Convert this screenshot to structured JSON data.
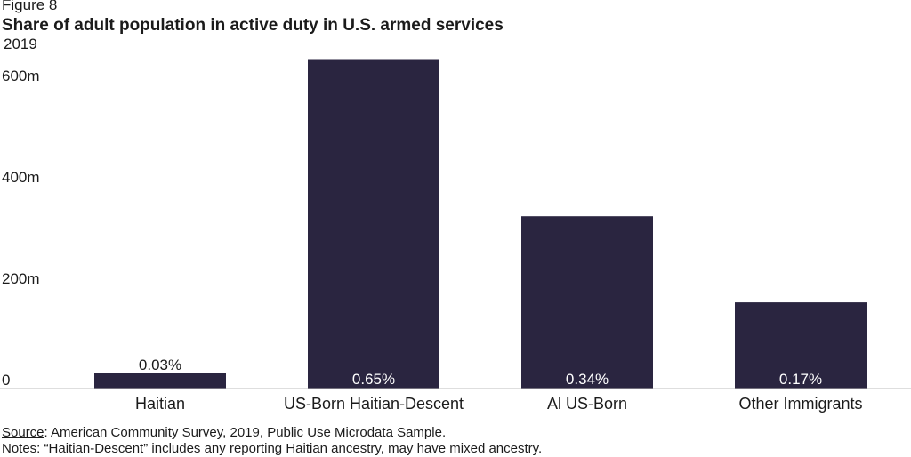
{
  "header": {
    "figure_label": "Figure 8",
    "title": "Share of adult population in active duty in U.S. armed services",
    "subtitle": "2019"
  },
  "chart_data": {
    "type": "bar",
    "categories": [
      "Haitian",
      "US-Born Haitian-Descent",
      "Al US-Born",
      "Other Immigrants"
    ],
    "values": [
      0.03,
      0.65,
      0.34,
      0.17
    ],
    "data_labels": [
      "0.03%",
      "0.65%",
      "0.34%",
      "0.17%"
    ],
    "ytick_labels": [
      "0",
      "200m",
      "400m",
      "600m"
    ],
    "yticks": [
      0,
      0.2,
      0.4,
      0.6
    ],
    "ylim": [
      0,
      0.6842
    ],
    "grid": false,
    "bar_color": "#2a2540",
    "label_inside_color": "#ffffff",
    "label_outside_color": "#1b1b1b"
  },
  "footer": {
    "source_label": "Source",
    "source_text": ": American Community Survey, 2019, Public Use Microdata Sample.",
    "notes": "Notes: “Haitian-Descent” includes any reporting Haitian ancestry, may have mixed ancestry."
  }
}
